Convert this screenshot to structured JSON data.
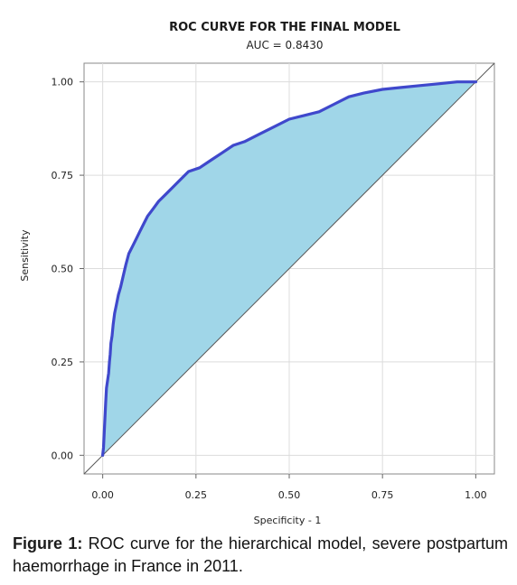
{
  "chart_data": {
    "type": "line",
    "title": "ROC CURVE FOR THE FINAL MODEL",
    "subtitle": "AUC = 0.8430",
    "xlabel": "Specificity - 1",
    "ylabel": "Sensitivity",
    "xlim": [
      -0.05,
      1.05
    ],
    "ylim": [
      -0.05,
      1.05
    ],
    "xticks": [
      0,
      0.25,
      0.5,
      0.75,
      1
    ],
    "yticks": [
      0,
      0.25,
      0.5,
      0.75,
      1
    ],
    "xtick_labels": [
      "0.00",
      "0.25",
      "0.50",
      "0.75",
      "1.00"
    ],
    "ytick_labels": [
      "0.00",
      "0.25",
      "0.50",
      "0.75",
      "1.00"
    ],
    "grid": true,
    "fill_color": "#a0d6e8",
    "line_color": "#3f48cc",
    "reference_line": {
      "x": [
        0,
        1
      ],
      "y": [
        0,
        1
      ]
    },
    "series": [
      {
        "x": [
          0,
          0.002,
          0.004,
          0.006,
          0.008,
          0.01,
          0.013,
          0.016,
          0.018,
          0.02,
          0.022,
          0.025,
          0.028,
          0.032,
          0.036,
          0.042,
          0.048,
          0.055,
          0.062,
          0.07,
          0.08,
          0.09,
          0.1,
          0.11,
          0.12,
          0.135,
          0.15,
          0.17,
          0.19,
          0.21,
          0.23,
          0.26,
          0.29,
          0.32,
          0.35,
          0.38,
          0.42,
          0.46,
          0.5,
          0.54,
          0.58,
          0.62,
          0.66,
          0.7,
          0.75,
          0.8,
          0.85,
          0.9,
          0.95,
          0.98,
          1.0
        ],
        "y": [
          0,
          0.02,
          0.06,
          0.1,
          0.14,
          0.18,
          0.2,
          0.22,
          0.25,
          0.27,
          0.3,
          0.32,
          0.35,
          0.38,
          0.4,
          0.43,
          0.45,
          0.48,
          0.51,
          0.54,
          0.56,
          0.58,
          0.6,
          0.62,
          0.64,
          0.66,
          0.68,
          0.7,
          0.72,
          0.74,
          0.76,
          0.77,
          0.79,
          0.81,
          0.83,
          0.84,
          0.86,
          0.88,
          0.9,
          0.91,
          0.92,
          0.94,
          0.96,
          0.97,
          0.98,
          0.985,
          0.99,
          0.995,
          1.0,
          1.0,
          1.0
        ]
      }
    ]
  },
  "caption": {
    "label": "Figure 1:",
    "text": " ROC curve for the hierarchical model, severe postpartum haemorrhage in France in 2011."
  }
}
